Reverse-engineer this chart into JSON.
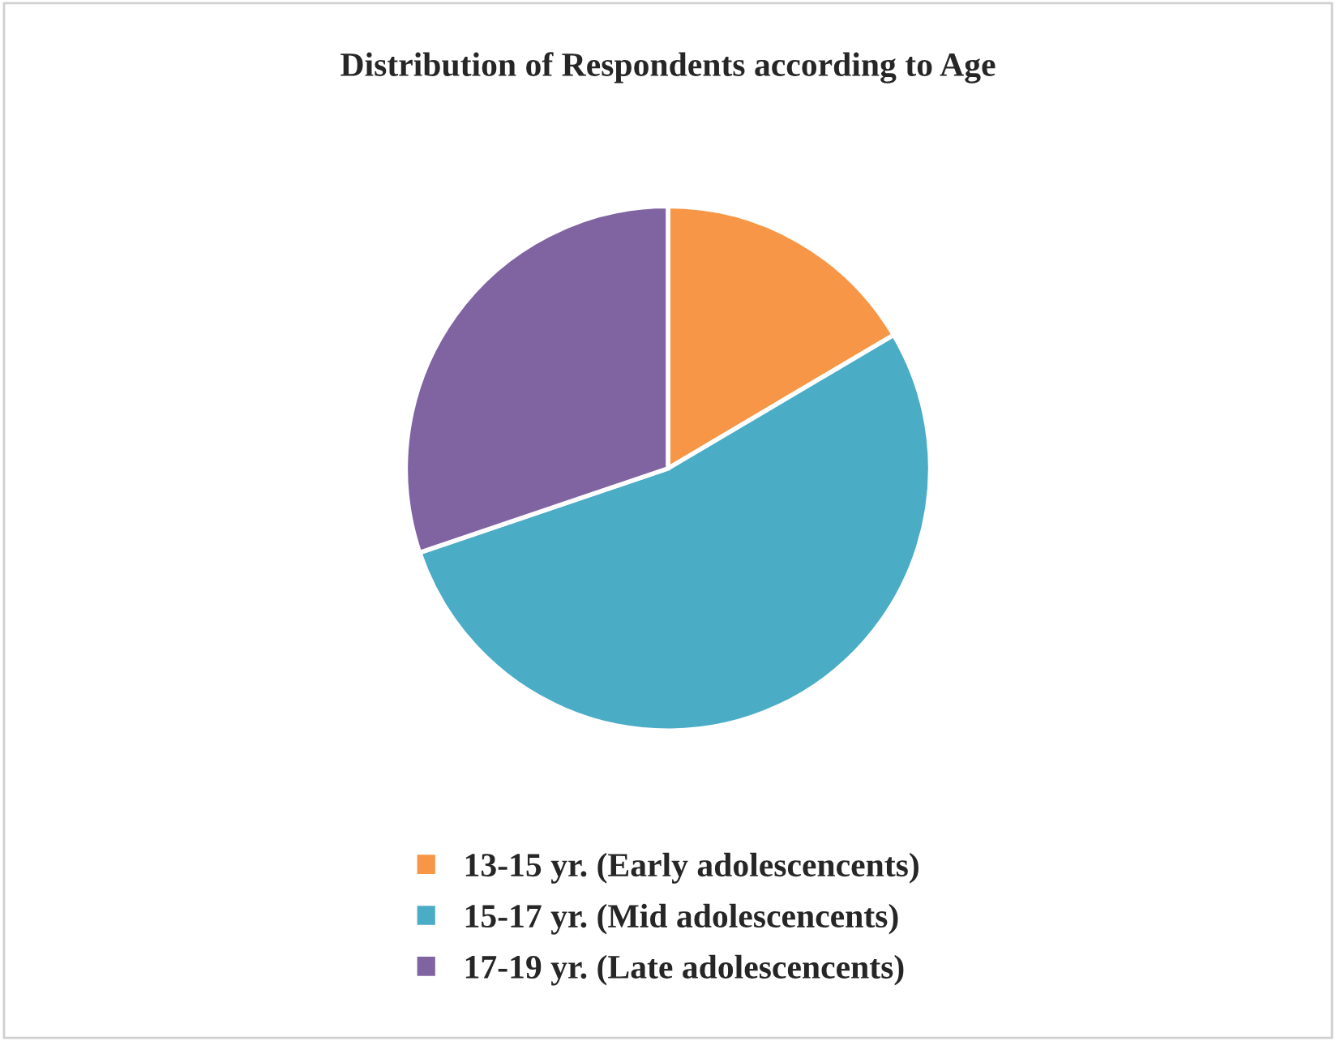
{
  "chart_data": {
    "type": "pie",
    "title": "Distribution of Respondents according to Age",
    "categories": [
      "13-15 yr. (Early adolescencents)",
      "15-17 yr. (Mid adolescencents)",
      "17-19 yr. (Late adolescencents)"
    ],
    "values": [
      16.5,
      53.3,
      30.2
    ],
    "colors": [
      "#f79646",
      "#4bacc6",
      "#8064a2"
    ],
    "legend": "bottom"
  }
}
